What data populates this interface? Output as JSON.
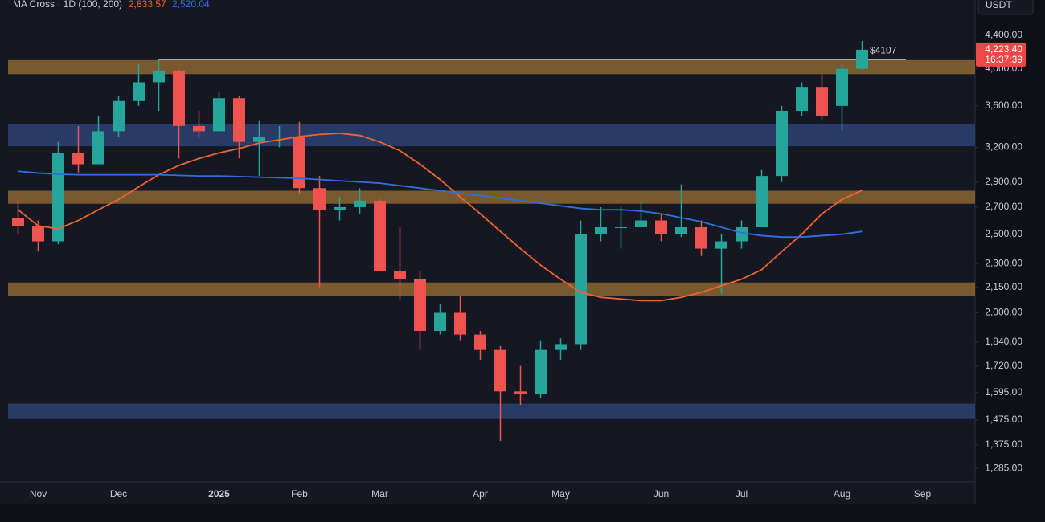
{
  "chart_data": {
    "type": "candlestick",
    "indicator": "MA Cross · 1D (100, 200)",
    "currency": "USDT",
    "log_scale": true,
    "up_color": "#26a69a",
    "down_color": "#ef5350",
    "categories": [
      "",
      "Nov",
      null,
      null,
      null,
      "Dec",
      null,
      null,
      null,
      null,
      "2025",
      null,
      null,
      null,
      "Feb",
      null,
      null,
      null,
      "Mar",
      null,
      null,
      null,
      null,
      "Apr",
      null,
      null,
      null,
      "May",
      null,
      null,
      null,
      null,
      "Jun",
      null,
      null,
      null,
      "Jul",
      null,
      null,
      null,
      null,
      "Aug",
      null,
      null,
      null,
      "Sep",
      null,
      null
    ],
    "candles": {
      "open": [
        2620,
        2560,
        2450,
        3150,
        3050,
        3350,
        3650,
        3850,
        3980,
        3400,
        3350,
        3680,
        3250,
        3300,
        3300,
        2850,
        2680,
        2700,
        2750,
        2250,
        2200,
        1900,
        2000,
        1880,
        1800,
        1600,
        1590,
        1800,
        1830,
        2500,
        2550,
        2550,
        2600,
        2500,
        2550,
        2400,
        2450,
        2550,
        2950,
        3550,
        3800,
        3600,
        4000,
        null,
        null,
        null,
        null,
        null
      ],
      "high": [
        2750,
        2600,
        3250,
        3400,
        3500,
        3700,
        4050,
        4107,
        3990,
        3550,
        3750,
        3700,
        3450,
        3400,
        3440,
        2950,
        2780,
        2850,
        2760,
        2550,
        2250,
        2050,
        2100,
        1900,
        1820,
        1720,
        1850,
        1860,
        2600,
        2700,
        2700,
        2750,
        2650,
        2880,
        2600,
        2500,
        2600,
        3000,
        3600,
        3850,
        3950,
        4050,
        4330,
        null,
        null,
        null,
        null,
        null
      ],
      "low": [
        2500,
        2380,
        2430,
        2980,
        3050,
        3300,
        3600,
        3550,
        3100,
        3300,
        3350,
        3100,
        2950,
        3200,
        2800,
        2150,
        2600,
        2650,
        2250,
        2080,
        1800,
        1880,
        1850,
        1750,
        1390,
        1540,
        1570,
        1750,
        1800,
        2450,
        2400,
        2550,
        2450,
        2480,
        2350,
        2110,
        2400,
        2550,
        2900,
        3500,
        3450,
        3360,
        3990,
        null,
        null,
        null,
        null,
        null
      ],
      "close": [
        2560,
        2450,
        3150,
        3050,
        3350,
        3650,
        3850,
        3980,
        3400,
        3350,
        3680,
        3250,
        3300,
        3300,
        2850,
        2680,
        2700,
        2750,
        2250,
        2200,
        1900,
        2000,
        1880,
        1800,
        1600,
        1590,
        1800,
        1830,
        2500,
        2550,
        2550,
        2600,
        2500,
        2550,
        2400,
        2450,
        2550,
        2950,
        3550,
        3800,
        3500,
        4000,
        4223.4,
        null,
        null,
        null,
        null,
        null
      ]
    },
    "series": [
      {
        "name": "MA 100",
        "color": "#f0642d",
        "values": [
          2680,
          2560,
          2540,
          2600,
          2680,
          2760,
          2860,
          2960,
          3040,
          3100,
          3150,
          3190,
          3240,
          3270,
          3300,
          3320,
          3330,
          3310,
          3250,
          3170,
          3050,
          2920,
          2780,
          2650,
          2520,
          2400,
          2290,
          2200,
          2120,
          2090,
          2080,
          2070,
          2070,
          2090,
          2120,
          2160,
          2200,
          2260,
          2380,
          2500,
          2650,
          2760,
          2833.57,
          null,
          null,
          null,
          null,
          null
        ],
        "last_label": "2,833.57"
      },
      {
        "name": "MA 200",
        "color": "#2f6fe0",
        "values": [
          2990,
          2975,
          2965,
          2960,
          2960,
          2960,
          2960,
          2960,
          2955,
          2950,
          2950,
          2945,
          2940,
          2935,
          2930,
          2920,
          2910,
          2900,
          2890,
          2870,
          2850,
          2830,
          2810,
          2790,
          2770,
          2750,
          2730,
          2710,
          2690,
          2680,
          2680,
          2670,
          2650,
          2620,
          2590,
          2550,
          2510,
          2490,
          2480,
          2480,
          2490,
          2500,
          2520.04,
          null,
          null,
          null,
          null,
          null
        ],
        "last_label": "2,520.04"
      }
    ],
    "zones": [
      {
        "from": 4100,
        "to": 3940,
        "color": "#8a6630"
      },
      {
        "from": 3420,
        "to": 3210,
        "color": "#2b4272"
      },
      {
        "from": 2829,
        "to": 2726,
        "color": "#8a6630"
      },
      {
        "from": 2180,
        "to": 2100,
        "color": "#8a6630"
      },
      {
        "from": 1545,
        "to": 1479,
        "color": "#2b4272"
      }
    ],
    "annotation": {
      "value": 4107,
      "label": "$4107"
    },
    "price_label": {
      "value": 4223.4,
      "label": "4,223.40"
    },
    "countdown": "16:37:39",
    "ylim": [
      1240,
      4700
    ],
    "yticks": [
      {
        "value": 4400,
        "label": "4,400.00"
      },
      {
        "value": 4000,
        "label": "4,000.00"
      },
      {
        "value": 3600,
        "label": "3,600.00"
      },
      {
        "value": 3200,
        "label": "3,200.00"
      },
      {
        "value": 2900,
        "label": "2,900.00"
      },
      {
        "value": 2700,
        "label": "2,700.00"
      },
      {
        "value": 2500,
        "label": "2,500.00"
      },
      {
        "value": 2300,
        "label": "2,300.00"
      },
      {
        "value": 2150,
        "label": "2,150.00"
      },
      {
        "value": 2000,
        "label": "2,000.00"
      },
      {
        "value": 1840,
        "label": "1,840.00"
      },
      {
        "value": 1720,
        "label": "1,720.00"
      },
      {
        "value": 1595,
        "label": "1,595.00"
      },
      {
        "value": 1475,
        "label": "1,475.00"
      },
      {
        "value": 1375,
        "label": "1,375.00"
      },
      {
        "value": 1285,
        "label": "1,285.00"
      }
    ]
  }
}
